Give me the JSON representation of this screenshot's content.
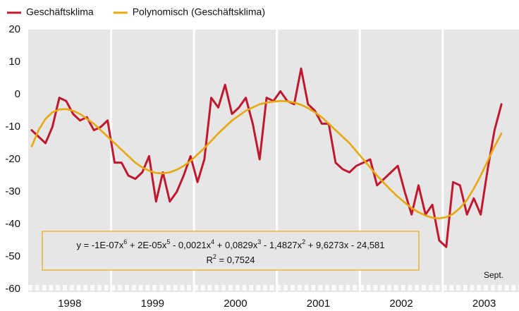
{
  "chart_data": {
    "type": "line",
    "x": [
      1998.042,
      1998.125,
      1998.208,
      1998.292,
      1998.375,
      1998.458,
      1998.542,
      1998.625,
      1998.708,
      1998.792,
      1998.875,
      1998.958,
      1999.042,
      1999.125,
      1999.208,
      1999.292,
      1999.375,
      1999.458,
      1999.542,
      1999.625,
      1999.708,
      1999.792,
      1999.875,
      1999.958,
      2000.042,
      2000.125,
      2000.208,
      2000.292,
      2000.375,
      2000.458,
      2000.542,
      2000.625,
      2000.708,
      2000.792,
      2000.875,
      2000.958,
      2001.042,
      2001.125,
      2001.208,
      2001.292,
      2001.375,
      2001.458,
      2001.542,
      2001.625,
      2001.708,
      2001.792,
      2001.875,
      2001.958,
      2002.042,
      2002.125,
      2002.208,
      2002.292,
      2002.375,
      2002.458,
      2002.542,
      2002.625,
      2002.708,
      2002.792,
      2002.875,
      2002.958,
      2003.042,
      2003.125,
      2003.208,
      2003.292,
      2003.375,
      2003.458,
      2003.542,
      2003.625,
      2003.708
    ],
    "series": [
      {
        "name": "Geschäftsklima",
        "color": "#c0182f",
        "values": [
          -11,
          -13,
          -15,
          -10,
          -1,
          -2,
          -6,
          -8,
          -7,
          -11,
          -10,
          -8,
          -21,
          -21,
          -25,
          -26,
          -24,
          -19,
          -33,
          -24,
          -33,
          -30,
          -25,
          -19,
          -27,
          -20,
          -1,
          -4,
          3,
          -6,
          -4,
          -1,
          -9,
          -20,
          -1,
          -2,
          1,
          -2,
          -3,
          8,
          -3,
          -5,
          -9,
          -9,
          -21,
          -23,
          -24,
          -22,
          -21,
          -20,
          -28,
          -26,
          -24,
          -22,
          -30,
          -37,
          -28,
          -37,
          -34,
          -45,
          -47,
          -27,
          -28,
          -37,
          -32,
          -37,
          -23,
          -11,
          -3
        ]
      },
      {
        "name": "Polynomisch (Geschäftsklima)",
        "color": "#e8a80c",
        "values": [
          -16,
          -11,
          -7.5,
          -5.5,
          -4.6,
          -4.5,
          -5,
          -6,
          -7.5,
          -9,
          -11,
          -13,
          -15,
          -17,
          -19,
          -21,
          -22.5,
          -23.5,
          -24.2,
          -24.3,
          -24,
          -23.2,
          -22,
          -20.5,
          -18.5,
          -16.5,
          -14.3,
          -12,
          -10,
          -8,
          -6.5,
          -5,
          -4,
          -3,
          -2.5,
          -2.2,
          -2,
          -2.1,
          -2.5,
          -3.2,
          -4.2,
          -5.5,
          -7,
          -9,
          -11,
          -13,
          -15,
          -17.5,
          -20,
          -22.5,
          -25,
          -27.3,
          -29.5,
          -31.5,
          -33.3,
          -35,
          -36.3,
          -37.3,
          -38,
          -38.2,
          -37.8,
          -36.8,
          -35,
          -32.5,
          -29,
          -25,
          -20.5,
          -16,
          -12
        ]
      }
    ],
    "xlim": [
      1998,
      2003.92
    ],
    "xticks": [
      {
        "value": 1998.5,
        "label": "1998"
      },
      {
        "value": 1999.5,
        "label": "1999"
      },
      {
        "value": 2000.5,
        "label": "2000"
      },
      {
        "value": 2001.5,
        "label": "2001"
      },
      {
        "value": 2002.5,
        "label": "2002"
      },
      {
        "value": 2003.5,
        "label": "2003"
      }
    ],
    "year_lines": [
      1999,
      2000,
      2001,
      2002,
      2003
    ],
    "ylim": [
      -60,
      20
    ],
    "yticks": [
      -60,
      -50,
      -40,
      -30,
      -20,
      -10,
      0,
      10,
      20
    ],
    "annotation": "Sept.",
    "equation": [
      "y = -1E-07x",
      "6",
      " + 2E-05x",
      "5",
      " - 0,0021x",
      "4",
      " + 0,0829x",
      "3",
      " - 1,4827x",
      "2",
      " + 9,6273x - 24,581"
    ],
    "r_squared": [
      "R",
      "2",
      " = 0,7524"
    ]
  }
}
